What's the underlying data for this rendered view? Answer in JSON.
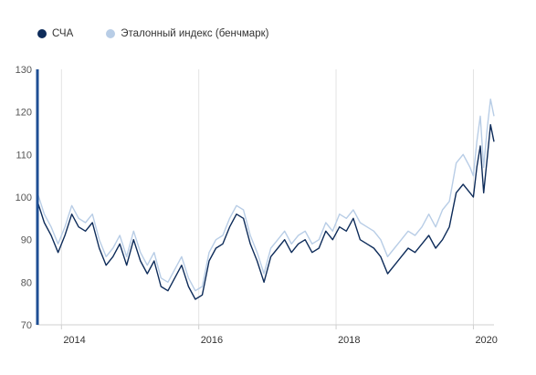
{
  "legend": {
    "items": [
      {
        "label": "СЧА",
        "color": "#0e2c5a"
      },
      {
        "label": "Эталонный индекс (бенчмарк)",
        "color": "#b8cde6"
      }
    ]
  },
  "chart_data": {
    "type": "line",
    "xlim": [
      2013.65,
      2020.3
    ],
    "ylim": [
      70,
      130
    ],
    "y_ticks": [
      70,
      80,
      90,
      100,
      110,
      120,
      130
    ],
    "x_ticks": [
      2014,
      2016,
      2018,
      2020
    ],
    "x_tick_labels": [
      "2014",
      "2016",
      "2018",
      "2020"
    ],
    "grid": {
      "x": true,
      "y": false
    },
    "legend_position": "top-left",
    "series": [
      {
        "name": "СЧА",
        "color": "#0e2c5a",
        "x": [
          2013.65,
          2013.75,
          2013.85,
          2013.95,
          2014.05,
          2014.15,
          2014.25,
          2014.35,
          2014.45,
          2014.55,
          2014.65,
          2014.75,
          2014.85,
          2014.95,
          2015.05,
          2015.15,
          2015.25,
          2015.35,
          2015.45,
          2015.55,
          2015.65,
          2015.75,
          2015.85,
          2015.95,
          2016.05,
          2016.15,
          2016.25,
          2016.35,
          2016.45,
          2016.55,
          2016.65,
          2016.75,
          2016.85,
          2016.95,
          2017.05,
          2017.15,
          2017.25,
          2017.35,
          2017.45,
          2017.55,
          2017.65,
          2017.75,
          2017.85,
          2017.95,
          2018.05,
          2018.15,
          2018.25,
          2018.35,
          2018.45,
          2018.55,
          2018.65,
          2018.75,
          2018.85,
          2018.95,
          2019.05,
          2019.15,
          2019.25,
          2019.35,
          2019.45,
          2019.55,
          2019.65,
          2019.75,
          2019.85,
          2019.95,
          2020.0,
          2020.05,
          2020.1,
          2020.15,
          2020.2,
          2020.25,
          2020.3
        ],
        "values": [
          99,
          94,
          91,
          87,
          91,
          96,
          93,
          92,
          94,
          88,
          84,
          86,
          89,
          84,
          90,
          85,
          82,
          85,
          79,
          78,
          81,
          84,
          79,
          76,
          77,
          85,
          88,
          89,
          93,
          96,
          95,
          89,
          85,
          80,
          86,
          88,
          90,
          87,
          89,
          90,
          87,
          88,
          92,
          90,
          93,
          92,
          95,
          90,
          89,
          88,
          86,
          82,
          84,
          86,
          88,
          87,
          89,
          91,
          88,
          90,
          93,
          101,
          103,
          101,
          100,
          107,
          112,
          101,
          109,
          117,
          113
        ]
      },
      {
        "name": "Эталонный индекс (бенчмарк)",
        "color": "#b8cde6",
        "x": [
          2013.65,
          2013.75,
          2013.85,
          2013.95,
          2014.05,
          2014.15,
          2014.25,
          2014.35,
          2014.45,
          2014.55,
          2014.65,
          2014.75,
          2014.85,
          2014.95,
          2015.05,
          2015.15,
          2015.25,
          2015.35,
          2015.45,
          2015.55,
          2015.65,
          2015.75,
          2015.85,
          2015.95,
          2016.05,
          2016.15,
          2016.25,
          2016.35,
          2016.45,
          2016.55,
          2016.65,
          2016.75,
          2016.85,
          2016.95,
          2017.05,
          2017.15,
          2017.25,
          2017.35,
          2017.45,
          2017.55,
          2017.65,
          2017.75,
          2017.85,
          2017.95,
          2018.05,
          2018.15,
          2018.25,
          2018.35,
          2018.45,
          2018.55,
          2018.65,
          2018.75,
          2018.85,
          2018.95,
          2019.05,
          2019.15,
          2019.25,
          2019.35,
          2019.45,
          2019.55,
          2019.65,
          2019.75,
          2019.85,
          2019.95,
          2020.0,
          2020.05,
          2020.1,
          2020.15,
          2020.2,
          2020.25,
          2020.3
        ],
        "values": [
          101,
          96,
          93,
          89,
          93,
          98,
          95,
          94,
          96,
          90,
          86,
          88,
          91,
          86,
          92,
          87,
          84,
          87,
          81,
          80,
          83,
          86,
          81,
          78,
          79,
          87,
          90,
          91,
          95,
          98,
          97,
          91,
          87,
          82,
          88,
          90,
          92,
          89,
          91,
          92,
          89,
          90,
          94,
          92,
          96,
          95,
          97,
          94,
          93,
          92,
          90,
          86,
          88,
          90,
          92,
          91,
          93,
          96,
          93,
          97,
          99,
          108,
          110,
          107,
          105,
          113,
          119,
          107,
          116,
          123,
          119
        ]
      }
    ]
  }
}
